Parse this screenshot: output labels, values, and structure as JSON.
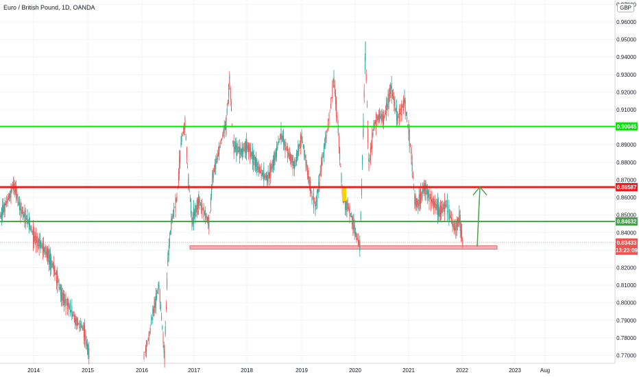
{
  "header": {
    "title": "Euro / British Pound, 1D, OANDA",
    "currency_badge": "GBP"
  },
  "colors": {
    "up": "#26a69a",
    "down": "#ef5350",
    "green_line": "#00e600",
    "green_line_dark": "#43a047",
    "red_line": "#f21c1c",
    "support_zone": "#ef9aa1",
    "arrow": "#43a047",
    "highlight": "#f2d600"
  },
  "chart_data": {
    "type": "candlestick",
    "title": "Euro / British Pound, 1D, OANDA",
    "y_axis": {
      "ticks": [
        "0.97000",
        "0.96000",
        "0.95000",
        "0.94000",
        "0.93000",
        "0.92000",
        "0.91000",
        "0.90000",
        "0.89000",
        "0.88000",
        "0.87000",
        "0.86000",
        "0.85000",
        "0.84000",
        "0.83000",
        "0.82000",
        "0.81000",
        "0.80000",
        "0.79000",
        "0.78000",
        "0.77000"
      ],
      "range": [
        0.7655,
        0.9725
      ]
    },
    "x_axis": {
      "ticks": [
        "2014",
        "2015",
        "2016",
        "2017",
        "2018",
        "2019",
        "2020",
        "2021",
        "2022",
        "2023",
        "Aug"
      ]
    },
    "series_path_points": [
      [
        0,
        0.848
      ],
      [
        10,
        0.858
      ],
      [
        20,
        0.866
      ],
      [
        30,
        0.854
      ],
      [
        40,
        0.846
      ],
      [
        50,
        0.838
      ],
      [
        60,
        0.832
      ],
      [
        70,
        0.828
      ],
      [
        80,
        0.818
      ],
      [
        90,
        0.805
      ],
      [
        100,
        0.798
      ],
      [
        110,
        0.79
      ],
      [
        120,
        0.786
      ],
      [
        125,
        0.78
      ],
      [
        130,
        0.77
      ],
      [
        210,
        0.77
      ],
      [
        218,
        0.782
      ],
      [
        225,
        0.798
      ],
      [
        232,
        0.81
      ],
      [
        240,
        0.77
      ],
      [
        245,
        0.826
      ],
      [
        250,
        0.846
      ],
      [
        258,
        0.86
      ],
      [
        265,
        0.894
      ],
      [
        270,
        0.902
      ],
      [
        275,
        0.868
      ],
      [
        280,
        0.846
      ],
      [
        290,
        0.858
      ],
      [
        300,
        0.85
      ],
      [
        305,
        0.845
      ],
      [
        310,
        0.872
      ],
      [
        320,
        0.888
      ],
      [
        330,
        0.902
      ],
      [
        335,
        0.928
      ],
      [
        340,
        0.89
      ],
      [
        350,
        0.885
      ],
      [
        360,
        0.89
      ],
      [
        370,
        0.882
      ],
      [
        380,
        0.875
      ],
      [
        390,
        0.87
      ],
      [
        400,
        0.882
      ],
      [
        410,
        0.895
      ],
      [
        420,
        0.886
      ],
      [
        430,
        0.878
      ],
      [
        440,
        0.895
      ],
      [
        450,
        0.872
      ],
      [
        455,
        0.86
      ],
      [
        460,
        0.855
      ],
      [
        470,
        0.88
      ],
      [
        480,
        0.905
      ],
      [
        487,
        0.928
      ],
      [
        492,
        0.905
      ],
      [
        500,
        0.86
      ],
      [
        510,
        0.852
      ],
      [
        520,
        0.838
      ],
      [
        525,
        0.833
      ],
      [
        530,
        0.9
      ],
      [
        533,
        0.945
      ],
      [
        538,
        0.878
      ],
      [
        545,
        0.9
      ],
      [
        550,
        0.905
      ],
      [
        560,
        0.905
      ],
      [
        570,
        0.922
      ],
      [
        580,
        0.905
      ],
      [
        590,
        0.915
      ],
      [
        600,
        0.885
      ],
      [
        605,
        0.858
      ],
      [
        610,
        0.856
      ],
      [
        620,
        0.866
      ],
      [
        630,
        0.858
      ],
      [
        640,
        0.852
      ],
      [
        650,
        0.856
      ],
      [
        660,
        0.845
      ],
      [
        665,
        0.842
      ],
      [
        670,
        0.848
      ],
      [
        675,
        0.834
      ]
    ],
    "lines": [
      {
        "value": 0.90045,
        "color": "green_line",
        "label": "0.90045"
      },
      {
        "value": 0.86587,
        "color": "red_line",
        "label": "0.86587"
      },
      {
        "value": 0.84632,
        "color": "green_line_dark",
        "label": "0.84632"
      }
    ],
    "last_price": {
      "value": 0.83433,
      "label": "0.83433",
      "countdown": "13:23:09"
    },
    "support_zone": {
      "low": 0.8305,
      "high": 0.8325
    },
    "arrow": {
      "from": 0.832,
      "to": 0.866
    }
  }
}
